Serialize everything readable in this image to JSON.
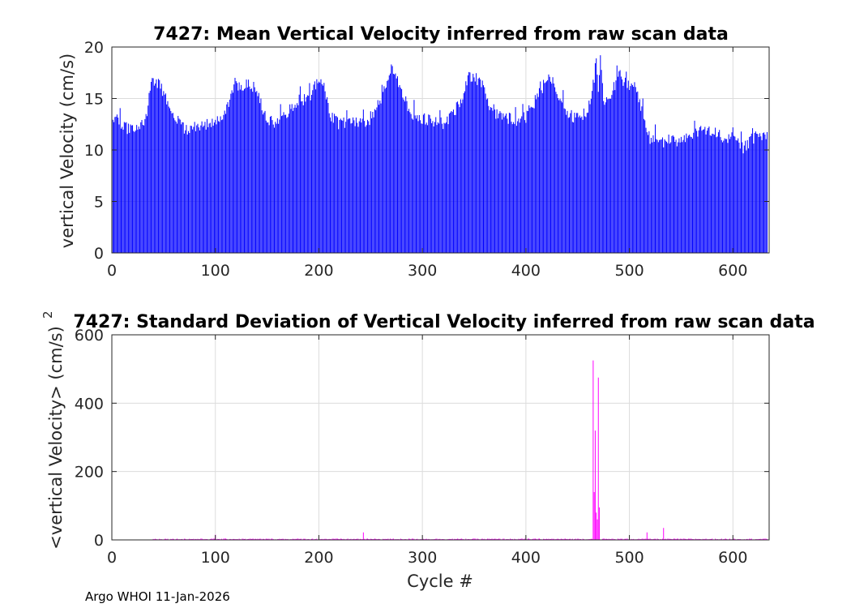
{
  "footer": "Argo WHOI 11-Jan-2026",
  "colors": {
    "top_bars": "#0000ff",
    "bottom_bars": "#ff00ff",
    "grid": "#dcdcdc",
    "axis": "#262626"
  },
  "chart_data": [
    {
      "type": "bar",
      "title": "7427: Mean Vertical Velocity inferred from raw scan data",
      "xlabel": "",
      "ylabel": "vertical Velocity (cm/s)",
      "xlim": [
        0,
        635
      ],
      "ylim": [
        0,
        20
      ],
      "xticks": [
        0,
        100,
        200,
        300,
        400,
        500,
        600
      ],
      "yticks": [
        0,
        5,
        10,
        15,
        20
      ],
      "grid": true,
      "series_color": "#0000ff",
      "x_range": [
        1,
        633
      ],
      "profile_points": {
        "x": [
          1,
          5,
          10,
          20,
          30,
          35,
          38,
          42,
          46,
          52,
          60,
          70,
          80,
          90,
          100,
          110,
          115,
          120,
          130,
          140,
          145,
          150,
          160,
          170,
          180,
          190,
          200,
          205,
          210,
          220,
          230,
          240,
          250,
          260,
          268,
          272,
          280,
          290,
          300,
          310,
          320,
          330,
          340,
          345,
          350,
          356,
          362,
          370,
          380,
          390,
          400,
          410,
          420,
          426,
          432,
          440,
          450,
          460,
          466,
          468,
          470,
          472,
          475,
          480,
          485,
          490,
          495,
          500,
          505,
          510,
          515,
          520,
          530,
          540,
          550,
          560,
          570,
          580,
          590,
          600,
          610,
          620,
          633
        ],
        "y": [
          12.2,
          13.5,
          12.2,
          12.0,
          12.3,
          14.0,
          17.2,
          16.2,
          16.4,
          15.0,
          13.2,
          12.0,
          12.2,
          12.3,
          13.0,
          13.5,
          15.2,
          16.3,
          16.3,
          16.2,
          14.0,
          12.8,
          12.5,
          13.6,
          14.8,
          15.0,
          16.8,
          16.3,
          13.5,
          12.5,
          12.8,
          12.6,
          13.0,
          15.0,
          17.5,
          17.8,
          15.6,
          13.5,
          13.0,
          12.8,
          12.6,
          13.6,
          15.5,
          17.2,
          17.0,
          16.8,
          15.0,
          13.6,
          13.2,
          12.8,
          13.2,
          15.0,
          16.8,
          16.5,
          15.2,
          13.5,
          13.0,
          13.8,
          17.0,
          19.0,
          16.0,
          19.3,
          15.0,
          14.5,
          16.0,
          17.6,
          16.6,
          16.4,
          16.0,
          14.5,
          13.0,
          11.2,
          10.8,
          10.9,
          10.8,
          11.5,
          12.0,
          11.7,
          11.3,
          11.1,
          10.2,
          11.2,
          11.5
        ]
      }
    },
    {
      "type": "bar",
      "title": "7427: Standard Deviation of Vertical Velocity inferred from raw scan data",
      "xlabel": "Cycle #",
      "ylabel": "<vertical Velocity> (cm/s)",
      "ylabel_superscript": "2",
      "xlim": [
        0,
        635
      ],
      "ylim": [
        0,
        600
      ],
      "xticks": [
        0,
        100,
        200,
        300,
        400,
        500,
        600
      ],
      "yticks": [
        0,
        200,
        400,
        600
      ],
      "grid": true,
      "series_color": "#ff00ff",
      "x_range": [
        40,
        633
      ],
      "baseline": 3,
      "spikes": [
        {
          "x": 100,
          "y": 15
        },
        {
          "x": 243,
          "y": 22
        },
        {
          "x": 465,
          "y": 525
        },
        {
          "x": 466,
          "y": 140
        },
        {
          "x": 467,
          "y": 320
        },
        {
          "x": 468,
          "y": 80
        },
        {
          "x": 469,
          "y": 60
        },
        {
          "x": 470,
          "y": 475
        },
        {
          "x": 471,
          "y": 95
        },
        {
          "x": 517,
          "y": 22
        },
        {
          "x": 533,
          "y": 35
        }
      ]
    }
  ]
}
